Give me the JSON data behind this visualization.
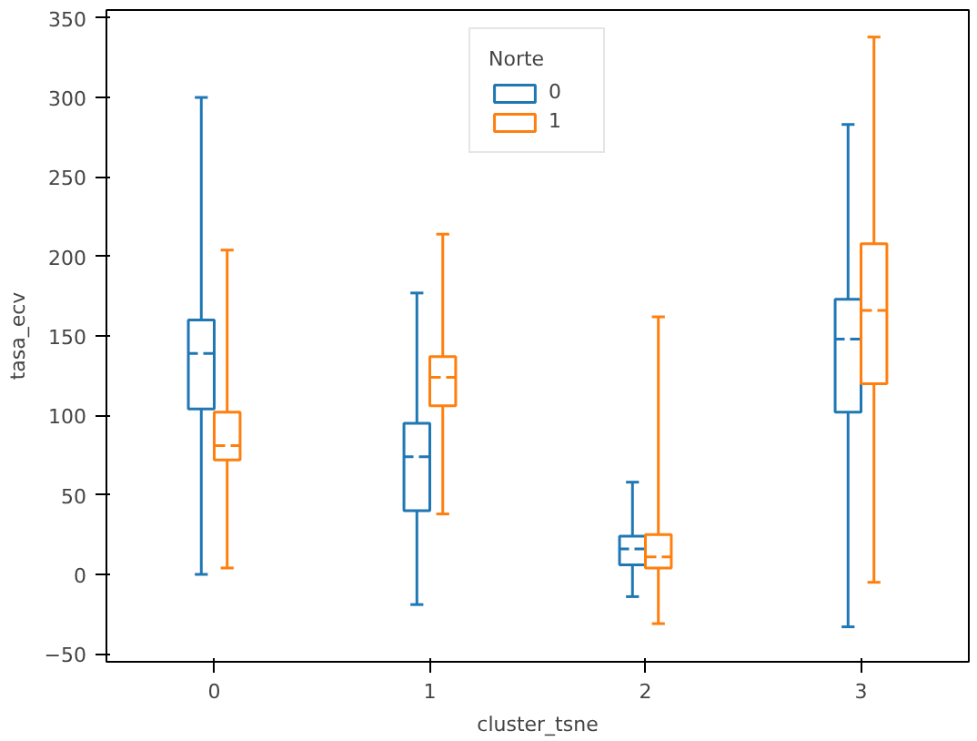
{
  "chart_data": {
    "type": "box",
    "xlabel": "cluster_tsne",
    "ylabel": "tasa_ecv",
    "legend_title": "Norte",
    "legend": "top",
    "grid": false,
    "categories": [
      "0",
      "1",
      "2",
      "3"
    ],
    "ylim": [
      -55,
      355
    ],
    "yticks": [
      -50,
      0,
      50,
      100,
      150,
      200,
      250,
      300,
      350
    ],
    "series": [
      {
        "name": "0",
        "color": "#1f77b4",
        "boxes": [
          {
            "low": 0,
            "q1": 104,
            "median": 139,
            "q3": 160,
            "high": 300
          },
          {
            "low": -19,
            "q1": 40,
            "median": 74,
            "q3": 95,
            "high": 177
          },
          {
            "low": -14,
            "q1": 6,
            "median": 16,
            "q3": 24,
            "high": 58
          },
          {
            "low": -33,
            "q1": 102,
            "median": 148,
            "q3": 173,
            "high": 283
          }
        ]
      },
      {
        "name": "1",
        "color": "#ff7f0e",
        "boxes": [
          {
            "low": 4,
            "q1": 72,
            "median": 81,
            "q3": 102,
            "high": 204
          },
          {
            "low": 38,
            "q1": 106,
            "median": 124,
            "q3": 137,
            "high": 214
          },
          {
            "low": -31,
            "q1": 4,
            "median": 11,
            "q3": 25,
            "high": 162
          },
          {
            "low": -5,
            "q1": 120,
            "median": 166,
            "q3": 208,
            "high": 338
          }
        ]
      }
    ]
  }
}
